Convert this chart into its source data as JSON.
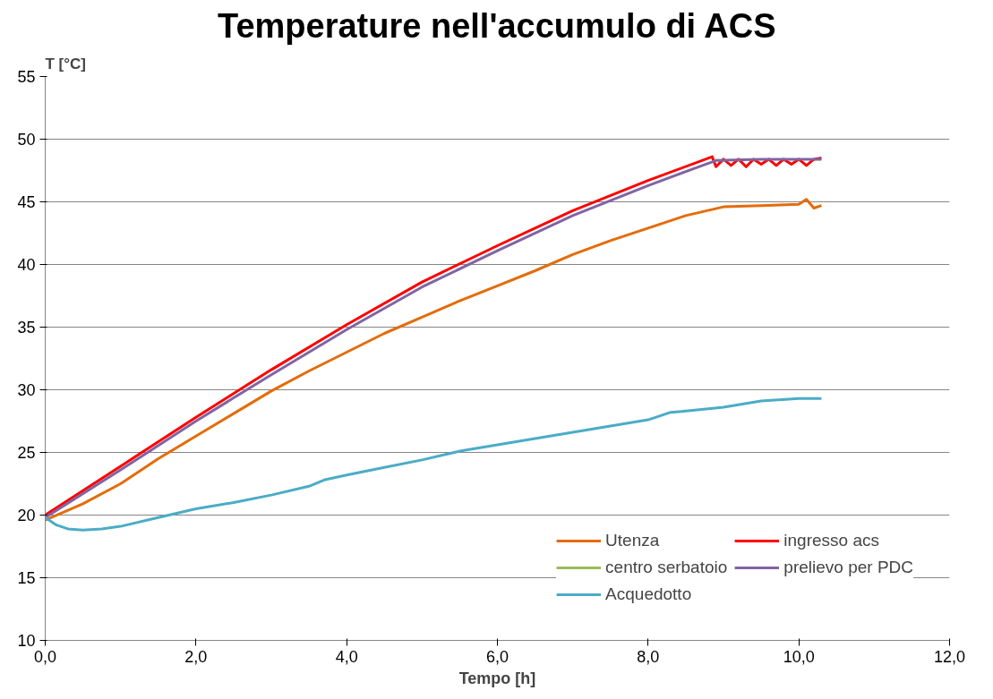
{
  "chart_data": {
    "type": "line",
    "title": "Temperature nell'accumulo di ACS",
    "xlabel": "Tempo [h]",
    "ylabel": "T [°C]",
    "xlim": [
      0,
      12
    ],
    "xticks": [
      {
        "value": 0,
        "label": "0,0"
      },
      {
        "value": 2,
        "label": "2,0"
      },
      {
        "value": 4,
        "label": "4,0"
      },
      {
        "value": 6,
        "label": "6,0"
      },
      {
        "value": 8,
        "label": "8,0"
      },
      {
        "value": 10,
        "label": "10,0"
      },
      {
        "value": 12,
        "label": "12,0"
      }
    ],
    "ylim": [
      10,
      55
    ],
    "yticks": [
      10,
      15,
      20,
      25,
      30,
      35,
      40,
      45,
      50,
      55
    ],
    "grid": "y",
    "legend": "bottom right",
    "marker": "none",
    "line_style": "solid",
    "series": [
      {
        "name": "Utenza",
        "color": "#e46c0a",
        "x": [
          0,
          0.5,
          1,
          1.5,
          2,
          2.5,
          3,
          3.5,
          4,
          4.5,
          5,
          5.5,
          6,
          6.5,
          7,
          7.5,
          8,
          8.5,
          9,
          9.5,
          10,
          10.1,
          10.2,
          10.3
        ],
        "values": [
          19.6,
          20.9,
          22.5,
          24.5,
          26.3,
          28.1,
          29.9,
          31.5,
          33.0,
          34.5,
          35.8,
          37.1,
          38.3,
          39.5,
          40.8,
          41.9,
          42.9,
          43.9,
          44.6,
          44.7,
          44.8,
          45.2,
          44.5,
          44.7
        ]
      },
      {
        "name": "ingresso acs",
        "color": "#ff0000",
        "x": [
          0,
          1,
          2,
          3,
          4,
          5,
          6,
          7,
          8,
          8.85,
          8.9,
          9.0,
          9.1,
          9.2,
          9.3,
          9.4,
          9.5,
          9.6,
          9.7,
          9.8,
          9.9,
          10.0,
          10.1,
          10.2,
          10.3
        ],
        "values": [
          20.0,
          23.9,
          27.8,
          31.6,
          35.2,
          38.6,
          41.5,
          44.3,
          46.7,
          48.6,
          47.8,
          48.4,
          47.9,
          48.4,
          47.8,
          48.4,
          48.0,
          48.4,
          47.9,
          48.4,
          48.0,
          48.4,
          47.9,
          48.4,
          48.5
        ]
      },
      {
        "name": "centro serbatoio",
        "color": "#9bbb59"
      },
      {
        "name": "prelievo per PDC",
        "color": "#8064a2",
        "x": [
          0,
          1,
          2,
          3,
          4,
          5,
          6,
          7,
          8,
          8.9,
          9.5,
          10.3
        ],
        "values": [
          19.8,
          23.6,
          27.5,
          31.2,
          34.8,
          38.2,
          41.1,
          43.9,
          46.3,
          48.3,
          48.4,
          48.4
        ]
      },
      {
        "name": "Acquedotto",
        "color": "#4bacc6",
        "x": [
          0,
          0.15,
          0.3,
          0.5,
          0.75,
          1,
          1.5,
          2,
          2.5,
          3,
          3.5,
          3.7,
          4,
          4.5,
          5,
          5.5,
          6,
          6.5,
          7,
          7.5,
          8,
          8.3,
          8.5,
          9,
          9.5,
          10,
          10.3
        ],
        "values": [
          19.8,
          19.2,
          18.9,
          18.8,
          18.9,
          19.1,
          19.8,
          20.5,
          21.0,
          21.6,
          22.3,
          22.8,
          23.2,
          23.8,
          24.4,
          25.1,
          25.6,
          26.1,
          26.6,
          27.1,
          27.6,
          28.2,
          28.3,
          28.6,
          29.1,
          29.3,
          29.3
        ]
      }
    ]
  }
}
